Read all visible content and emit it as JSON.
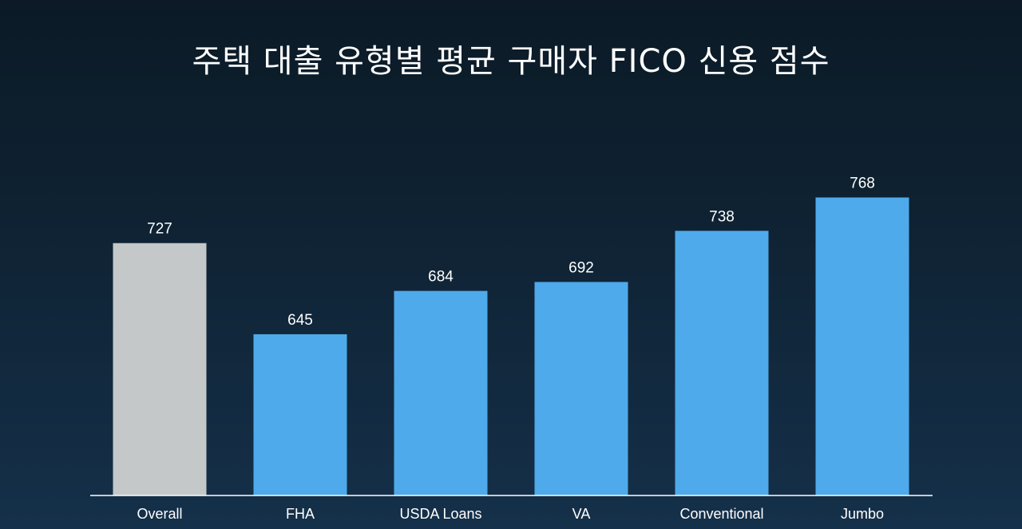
{
  "chart_data": {
    "type": "bar",
    "title": "주택 대출 유형별 평균 구매자 FICO 신용 점수",
    "categories": [
      "Overall",
      "FHA",
      "USDA Loans",
      "VA",
      "Conventional",
      "Jumbo"
    ],
    "values": [
      727,
      645,
      684,
      692,
      738,
      768
    ],
    "xlabel": "",
    "ylabel": "",
    "ylim": [
      500,
      800
    ],
    "grid": false,
    "legend": "none",
    "colors": {
      "highlight": "#c4c8c9",
      "default": "#4eaaea",
      "axis": "#ffffff",
      "text": "#ffffff"
    },
    "highlight_index": 0
  }
}
